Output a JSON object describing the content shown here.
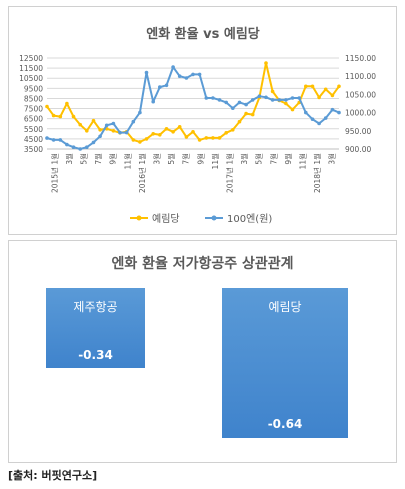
{
  "chart_data": [
    {
      "type": "line",
      "title": "엔화 환율 vs 예림당",
      "x_labels": [
        "2015년 1월",
        "3월",
        "5월",
        "7월",
        "9월",
        "11월",
        "2016년 1월",
        "3월",
        "5월",
        "7월",
        "9월",
        "11월",
        "2017년 1월",
        "3월",
        "5월",
        "7월",
        "9월",
        "11월",
        "2018년 1월",
        "3월"
      ],
      "y_left": {
        "ticks": [
          "3500",
          "4500",
          "5500",
          "6500",
          "7500",
          "8500",
          "9500",
          "10500",
          "11500",
          "12500"
        ],
        "range": [
          3500,
          12500
        ]
      },
      "y_right": {
        "ticks": [
          "900.00",
          "950.00",
          "1000.00",
          "1050.00",
          "1100.00",
          "1150.00"
        ],
        "range": [
          900,
          1150
        ]
      },
      "legend_position": "bottom",
      "series": [
        {
          "name": "예림당",
          "axis": "left",
          "color": "#ffc000",
          "values": [
            7700,
            6800,
            6700,
            8000,
            6700,
            5900,
            5300,
            6300,
            5400,
            5500,
            5300,
            5100,
            5200,
            4400,
            4200,
            4500,
            5000,
            4900,
            5500,
            5200,
            5700,
            4700,
            5200,
            4400,
            4600,
            4600,
            4600,
            5100,
            5400,
            6200,
            7000,
            6900,
            8600,
            12000,
            9200,
            8300,
            8000,
            7400,
            8100,
            9700,
            9700,
            8600,
            9400,
            8800,
            9700
          ]
        },
        {
          "name": "100엔(원)",
          "axis": "right",
          "color": "#5b9bd5",
          "values": [
            930,
            925,
            925,
            912,
            905,
            900,
            905,
            918,
            935,
            965,
            970,
            945,
            945,
            975,
            1000,
            1110,
            1030,
            1070,
            1075,
            1125,
            1100,
            1095,
            1105,
            1105,
            1040,
            1040,
            1035,
            1028,
            1012,
            1028,
            1022,
            1035,
            1045,
            1042,
            1035,
            1035,
            1035,
            1040,
            1040,
            1000,
            982,
            970,
            985,
            1008,
            1000
          ]
        }
      ]
    },
    {
      "type": "bar",
      "title": "엔화 환율 저가항공주 상관관계",
      "categories": [
        "제주항공",
        "예림당"
      ],
      "values": [
        -0.34,
        -0.64
      ],
      "colors": {
        "fill_top": "#5a9ad7",
        "fill_bottom": "#3f83cc",
        "label": "#ffffff"
      }
    }
  ],
  "source": "[출처: 버핏연구소]"
}
